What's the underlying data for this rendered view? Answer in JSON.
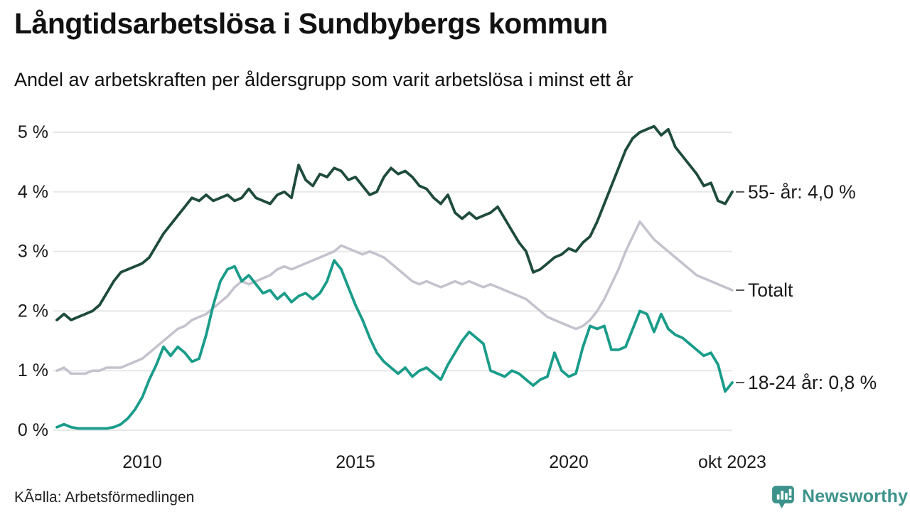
{
  "footer": {
    "source": "KÃ¤lla: Arbetsförmedlingen",
    "brand": "Newsworthy"
  },
  "colors": {
    "series_55plus": "#1e4b3d",
    "series_total": "#c5c2ce",
    "series_youth": "#1a9c8a",
    "grid": "#e7e7e7",
    "text": "#1a1a1a",
    "leader_tick": "#555555",
    "brand_teal": "#3c938c"
  },
  "chart_data": {
    "type": "line",
    "title": "Långtidsarbetslösa i Sundbybergs kommun",
    "subtitle": "Andel av arbetskraften per åldersgrupp som varit arbetslösa i minst ett år",
    "xlabel": "",
    "ylabel": "",
    "unit": "%",
    "grid": "horizontal-only",
    "legend_position": "right-end-labels",
    "x_axis": {
      "range": [
        2008.0,
        2023.8333
      ],
      "ticks": [
        {
          "value": 2010,
          "label": "2010"
        },
        {
          "value": 2015,
          "label": "2015"
        },
        {
          "value": 2020,
          "label": "2020"
        },
        {
          "value": 2023.8333,
          "label": "okt 2023"
        }
      ]
    },
    "y_axis": {
      "range": [
        0,
        5
      ],
      "ticks": [
        {
          "value": 0,
          "label": "0 %"
        },
        {
          "value": 1,
          "label": "1 %"
        },
        {
          "value": 2,
          "label": "2 %"
        },
        {
          "value": 3,
          "label": "3 %"
        },
        {
          "value": 4,
          "label": "4 %"
        },
        {
          "value": 5,
          "label": "5 %"
        }
      ]
    },
    "series": [
      {
        "id": "total",
        "name": "Totalt",
        "end_label": "Totalt",
        "color": "#c5c2ce",
        "stroke_width": 3.5,
        "start_year": 2008.0,
        "step_years": 0.166667,
        "values": [
          1.0,
          1.05,
          0.95,
          0.95,
          0.95,
          1.0,
          1.0,
          1.05,
          1.05,
          1.05,
          1.1,
          1.15,
          1.2,
          1.3,
          1.4,
          1.5,
          1.6,
          1.7,
          1.75,
          1.85,
          1.9,
          1.95,
          2.05,
          2.15,
          2.25,
          2.4,
          2.5,
          2.45,
          2.5,
          2.55,
          2.6,
          2.7,
          2.75,
          2.7,
          2.75,
          2.8,
          2.85,
          2.9,
          2.95,
          3.0,
          3.1,
          3.05,
          3.0,
          2.95,
          3.0,
          2.95,
          2.9,
          2.8,
          2.7,
          2.6,
          2.5,
          2.45,
          2.5,
          2.45,
          2.4,
          2.45,
          2.5,
          2.45,
          2.5,
          2.45,
          2.4,
          2.45,
          2.4,
          2.35,
          2.3,
          2.25,
          2.2,
          2.1,
          2.0,
          1.9,
          1.85,
          1.8,
          1.75,
          1.7,
          1.75,
          1.85,
          2.0,
          2.2,
          2.45,
          2.7,
          3.0,
          3.25,
          3.5,
          3.35,
          3.2,
          3.1,
          3.0,
          2.9,
          2.8,
          2.7,
          2.6,
          2.55,
          2.5,
          2.45,
          2.4,
          2.35
        ]
      },
      {
        "id": "55plus",
        "name": "55- år",
        "end_label": "55- år: 4,0 %",
        "color": "#1e4b3d",
        "stroke_width": 3.8,
        "start_year": 2008.0,
        "step_years": 0.166667,
        "values": [
          1.85,
          1.95,
          1.85,
          1.9,
          1.95,
          2.0,
          2.1,
          2.3,
          2.5,
          2.65,
          2.7,
          2.75,
          2.8,
          2.9,
          3.1,
          3.3,
          3.45,
          3.6,
          3.75,
          3.9,
          3.85,
          3.95,
          3.85,
          3.9,
          3.95,
          3.85,
          3.9,
          4.05,
          3.9,
          3.85,
          3.8,
          3.95,
          4.0,
          3.9,
          4.45,
          4.2,
          4.1,
          4.3,
          4.25,
          4.4,
          4.35,
          4.2,
          4.25,
          4.1,
          3.95,
          4.0,
          4.25,
          4.4,
          4.3,
          4.35,
          4.25,
          4.1,
          4.05,
          3.9,
          3.8,
          3.95,
          3.65,
          3.55,
          3.65,
          3.55,
          3.6,
          3.65,
          3.75,
          3.55,
          3.35,
          3.15,
          3.0,
          2.65,
          2.7,
          2.8,
          2.9,
          2.95,
          3.05,
          3.0,
          3.15,
          3.25,
          3.5,
          3.8,
          4.1,
          4.4,
          4.7,
          4.9,
          5.0,
          5.05,
          5.1,
          4.95,
          5.05,
          4.75,
          4.6,
          4.45,
          4.3,
          4.1,
          4.15,
          3.85,
          3.8,
          4.0
        ]
      },
      {
        "id": "youth",
        "name": "18-24 år",
        "end_label": "18-24 år: 0,8 %",
        "color": "#1a9c8a",
        "stroke_width": 3.8,
        "start_year": 2008.0,
        "step_years": 0.166667,
        "values": [
          0.05,
          0.1,
          0.05,
          0.03,
          0.03,
          0.03,
          0.03,
          0.03,
          0.05,
          0.1,
          0.2,
          0.35,
          0.55,
          0.85,
          1.1,
          1.4,
          1.25,
          1.4,
          1.3,
          1.15,
          1.2,
          1.6,
          2.1,
          2.5,
          2.7,
          2.75,
          2.5,
          2.6,
          2.45,
          2.3,
          2.35,
          2.2,
          2.3,
          2.15,
          2.25,
          2.3,
          2.2,
          2.3,
          2.5,
          2.85,
          2.7,
          2.4,
          2.1,
          1.85,
          1.55,
          1.3,
          1.15,
          1.05,
          0.95,
          1.05,
          0.9,
          1.0,
          1.05,
          0.95,
          0.85,
          1.1,
          1.3,
          1.5,
          1.65,
          1.55,
          1.45,
          1.0,
          0.95,
          0.9,
          1.0,
          0.95,
          0.85,
          0.75,
          0.85,
          0.9,
          1.3,
          1.0,
          0.9,
          0.95,
          1.4,
          1.75,
          1.7,
          1.75,
          1.35,
          1.35,
          1.4,
          1.7,
          2.0,
          1.95,
          1.65,
          1.95,
          1.7,
          1.6,
          1.55,
          1.45,
          1.35,
          1.25,
          1.3,
          1.1,
          0.65,
          0.8
        ]
      }
    ]
  }
}
